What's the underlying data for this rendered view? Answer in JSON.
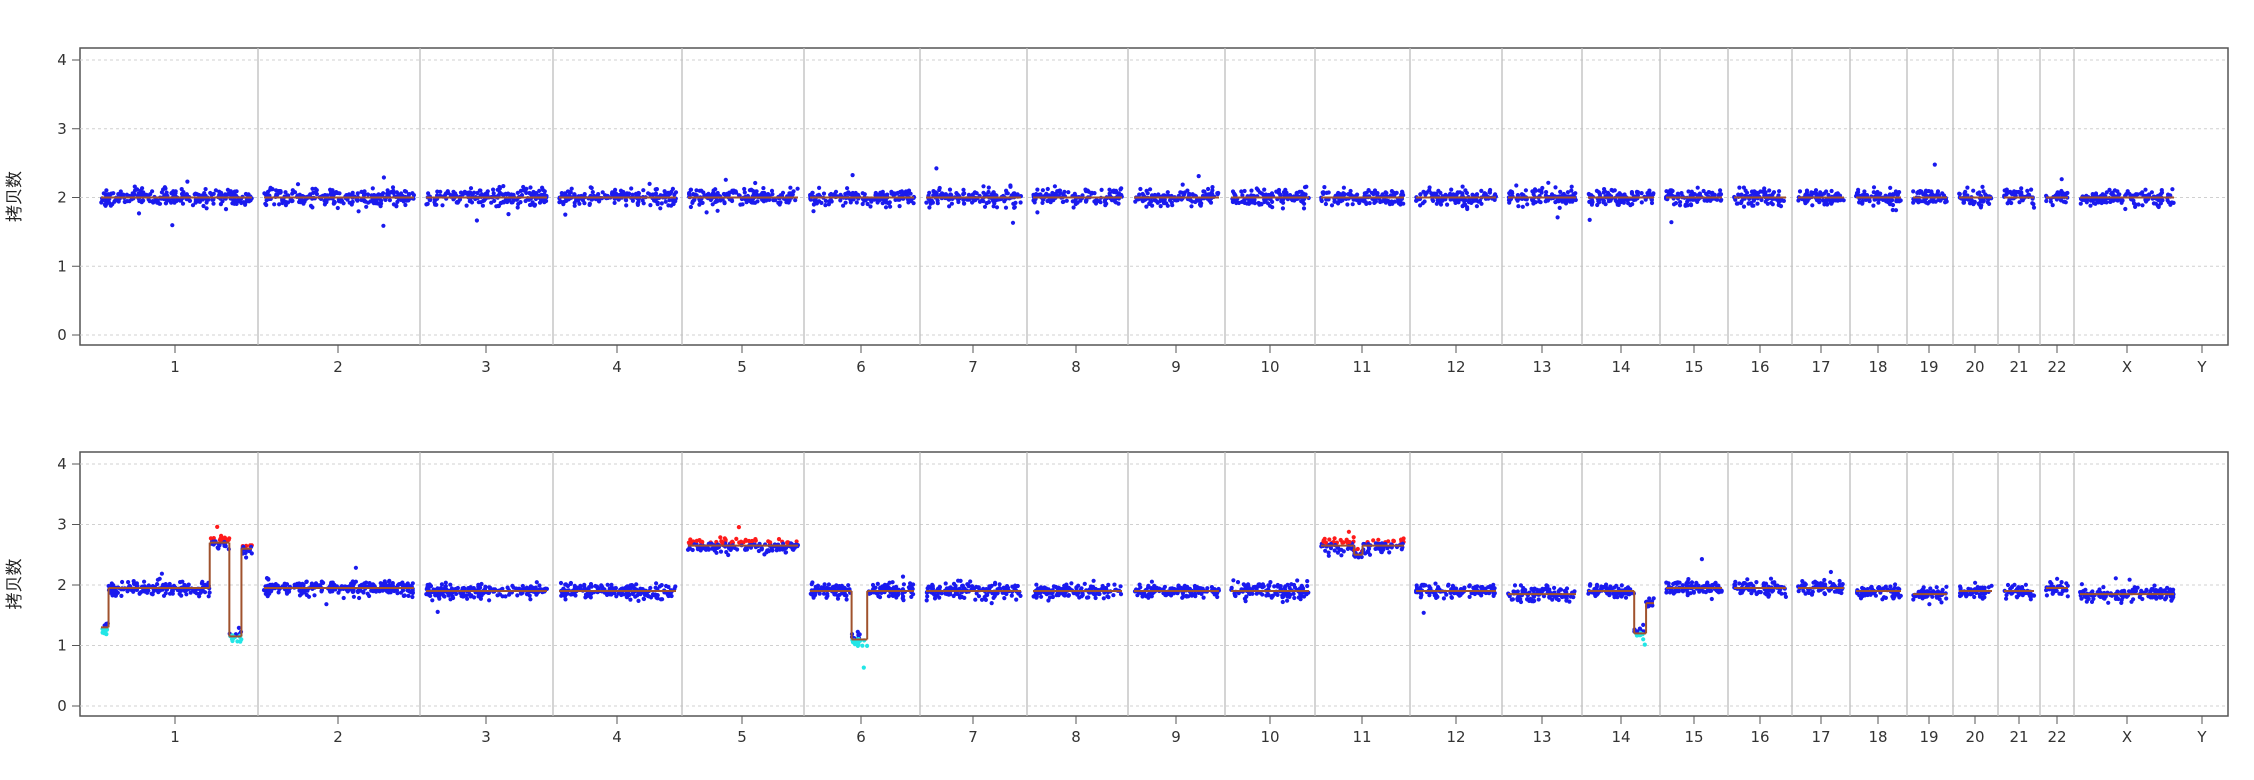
{
  "colors": {
    "normal": "#1a1aee",
    "gain": "#ff1a1a",
    "loss": "#22e6e6",
    "segment": "#a0522d",
    "frame": "#555555",
    "grid": "#d0d0d0",
    "separator": "#bdbdbd"
  },
  "chart_data": [
    {
      "type": "scatter",
      "ylabel": "拷贝数",
      "ylim": [
        0,
        4
      ],
      "y_ticks": [
        "0",
        "1",
        "2",
        "3",
        "4"
      ],
      "grid": "horizontal dashed",
      "chromosomes": [
        "1",
        "2",
        "3",
        "4",
        "5",
        "6",
        "7",
        "8",
        "9",
        "10",
        "11",
        "12",
        "13",
        "14",
        "15",
        "16",
        "17",
        "18",
        "19",
        "20",
        "21",
        "22",
        "X",
        "Y"
      ],
      "segments": [
        {
          "chrom": "1",
          "from": 0.0,
          "to": 1.0,
          "cn": 2.0
        },
        {
          "chrom": "2",
          "from": 0.0,
          "to": 1.0,
          "cn": 2.0
        },
        {
          "chrom": "3",
          "from": 0.0,
          "to": 1.0,
          "cn": 2.0
        },
        {
          "chrom": "4",
          "from": 0.0,
          "to": 1.0,
          "cn": 2.0
        },
        {
          "chrom": "5",
          "from": 0.0,
          "to": 1.0,
          "cn": 2.0
        },
        {
          "chrom": "6",
          "from": 0.0,
          "to": 1.0,
          "cn": 2.0
        },
        {
          "chrom": "7",
          "from": 0.0,
          "to": 1.0,
          "cn": 2.0
        },
        {
          "chrom": "8",
          "from": 0.0,
          "to": 1.0,
          "cn": 2.0
        },
        {
          "chrom": "9",
          "from": 0.0,
          "to": 1.0,
          "cn": 2.0
        },
        {
          "chrom": "10",
          "from": 0.0,
          "to": 1.0,
          "cn": 2.0
        },
        {
          "chrom": "11",
          "from": 0.0,
          "to": 1.0,
          "cn": 2.0
        },
        {
          "chrom": "12",
          "from": 0.0,
          "to": 1.0,
          "cn": 2.0
        },
        {
          "chrom": "13",
          "from": 0.0,
          "to": 1.0,
          "cn": 2.0
        },
        {
          "chrom": "14",
          "from": 0.0,
          "to": 1.0,
          "cn": 2.0
        },
        {
          "chrom": "15",
          "from": 0.0,
          "to": 1.0,
          "cn": 2.0
        },
        {
          "chrom": "16",
          "from": 0.0,
          "to": 1.0,
          "cn": 2.0
        },
        {
          "chrom": "17",
          "from": 0.0,
          "to": 1.0,
          "cn": 2.0
        },
        {
          "chrom": "18",
          "from": 0.0,
          "to": 1.0,
          "cn": 2.0
        },
        {
          "chrom": "19",
          "from": 0.0,
          "to": 1.0,
          "cn": 2.0
        },
        {
          "chrom": "20",
          "from": 0.0,
          "to": 1.0,
          "cn": 2.0
        },
        {
          "chrom": "21",
          "from": 0.0,
          "to": 1.0,
          "cn": 2.0
        },
        {
          "chrom": "22",
          "from": 0.0,
          "to": 1.0,
          "cn": 2.0
        },
        {
          "chrom": "X",
          "from": 0.0,
          "to": 1.0,
          "cn": 2.0
        }
      ]
    },
    {
      "type": "scatter",
      "ylabel": "拷贝数",
      "ylim": [
        0,
        4
      ],
      "y_ticks": [
        "0",
        "1",
        "2",
        "3",
        "4"
      ],
      "grid": "horizontal dashed",
      "chromosomes": [
        "1",
        "2",
        "3",
        "4",
        "5",
        "6",
        "7",
        "8",
        "9",
        "10",
        "11",
        "12",
        "13",
        "14",
        "15",
        "16",
        "17",
        "18",
        "19",
        "20",
        "21",
        "22",
        "X",
        "Y"
      ],
      "segments": [
        {
          "chrom": "1",
          "from": 0.0,
          "to": 0.05,
          "cn": 1.3
        },
        {
          "chrom": "1",
          "from": 0.05,
          "to": 0.72,
          "cn": 1.95
        },
        {
          "chrom": "1",
          "from": 0.72,
          "to": 0.85,
          "cn": 2.7
        },
        {
          "chrom": "1",
          "from": 0.85,
          "to": 0.93,
          "cn": 1.15
        },
        {
          "chrom": "1",
          "from": 0.93,
          "to": 1.0,
          "cn": 2.6
        },
        {
          "chrom": "2",
          "from": 0.0,
          "to": 1.0,
          "cn": 1.95
        },
        {
          "chrom": "3",
          "from": 0.0,
          "to": 1.0,
          "cn": 1.9
        },
        {
          "chrom": "4",
          "from": 0.0,
          "to": 1.0,
          "cn": 1.9
        },
        {
          "chrom": "5",
          "from": 0.0,
          "to": 1.0,
          "cn": 2.65
        },
        {
          "chrom": "6",
          "from": 0.0,
          "to": 0.4,
          "cn": 1.9
        },
        {
          "chrom": "6",
          "from": 0.4,
          "to": 0.55,
          "cn": 1.1
        },
        {
          "chrom": "6",
          "from": 0.55,
          "to": 1.0,
          "cn": 1.9
        },
        {
          "chrom": "7",
          "from": 0.0,
          "to": 1.0,
          "cn": 1.9
        },
        {
          "chrom": "8",
          "from": 0.0,
          "to": 1.0,
          "cn": 1.9
        },
        {
          "chrom": "9",
          "from": 0.0,
          "to": 1.0,
          "cn": 1.9
        },
        {
          "chrom": "10",
          "from": 0.0,
          "to": 1.0,
          "cn": 1.9
        },
        {
          "chrom": "11",
          "from": 0.0,
          "to": 0.4,
          "cn": 2.65
        },
        {
          "chrom": "11",
          "from": 0.4,
          "to": 0.5,
          "cn": 2.5
        },
        {
          "chrom": "11",
          "from": 0.5,
          "to": 1.0,
          "cn": 2.65
        },
        {
          "chrom": "12",
          "from": 0.0,
          "to": 1.0,
          "cn": 1.9
        },
        {
          "chrom": "13",
          "from": 0.0,
          "to": 1.0,
          "cn": 1.85
        },
        {
          "chrom": "14",
          "from": 0.0,
          "to": 0.7,
          "cn": 1.9
        },
        {
          "chrom": "14",
          "from": 0.7,
          "to": 0.88,
          "cn": 1.2
        },
        {
          "chrom": "14",
          "from": 0.88,
          "to": 1.0,
          "cn": 1.7
        },
        {
          "chrom": "15",
          "from": 0.0,
          "to": 1.0,
          "cn": 1.95
        },
        {
          "chrom": "16",
          "from": 0.0,
          "to": 1.0,
          "cn": 1.95
        },
        {
          "chrom": "17",
          "from": 0.0,
          "to": 1.0,
          "cn": 1.95
        },
        {
          "chrom": "18",
          "from": 0.0,
          "to": 1.0,
          "cn": 1.9
        },
        {
          "chrom": "19",
          "from": 0.0,
          "to": 1.0,
          "cn": 1.85
        },
        {
          "chrom": "20",
          "from": 0.0,
          "to": 1.0,
          "cn": 1.9
        },
        {
          "chrom": "21",
          "from": 0.0,
          "to": 1.0,
          "cn": 1.9
        },
        {
          "chrom": "22",
          "from": 0.0,
          "to": 1.0,
          "cn": 1.95
        },
        {
          "chrom": "X",
          "from": 0.0,
          "to": 1.0,
          "cn": 1.85
        }
      ]
    }
  ]
}
